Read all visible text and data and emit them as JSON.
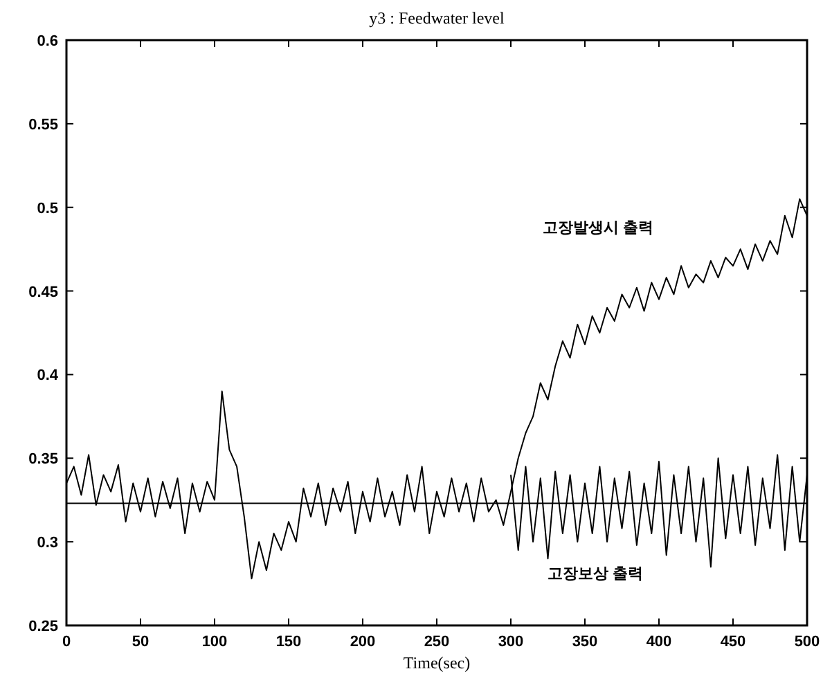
{
  "chart_data": {
    "type": "line",
    "title": "y3 : Feedwater level",
    "xlabel": "Time(sec)",
    "xlim": [
      0,
      500
    ],
    "xticks": [
      0,
      50,
      100,
      150,
      200,
      250,
      300,
      350,
      400,
      450,
      500
    ],
    "ylim": [
      0.25,
      0.6
    ],
    "yticks": [
      0.25,
      0.3,
      0.35,
      0.4,
      0.45,
      0.5,
      0.55,
      0.6
    ],
    "grid": false,
    "line_style": "solid",
    "series": [
      {
        "color": "#000000",
        "x": [
          0,
          5,
          10,
          15,
          20,
          25,
          30,
          35,
          40,
          45,
          50,
          55,
          60,
          65,
          70,
          75,
          80,
          85,
          90,
          95,
          100,
          105,
          110,
          115,
          120,
          125,
          130,
          135,
          140,
          145,
          150,
          155,
          160,
          165,
          170,
          175,
          180,
          185,
          190,
          195,
          200,
          205,
          210,
          215,
          220,
          225,
          230,
          235,
          240,
          245,
          250,
          255,
          260,
          265,
          270,
          275,
          280,
          285,
          290,
          295,
          300,
          305,
          310,
          315,
          320,
          325,
          330,
          335,
          340,
          345,
          350,
          355,
          360,
          365,
          370,
          375,
          380,
          385,
          390,
          395,
          400,
          405,
          410,
          415,
          420,
          425,
          430,
          435,
          440,
          445,
          450,
          455,
          460,
          465,
          470,
          475,
          480,
          485,
          490,
          495,
          500
        ],
        "values": [
          0.335,
          0.345,
          0.328,
          0.352,
          0.322,
          0.34,
          0.33,
          0.346,
          0.312,
          0.335,
          0.318,
          0.338,
          0.315,
          0.336,
          0.32,
          0.338,
          0.305,
          0.335,
          0.318,
          0.336,
          0.325,
          0.39,
          0.355,
          0.345,
          0.315,
          0.278,
          0.3,
          0.283,
          0.305,
          0.295,
          0.312,
          0.3,
          0.332,
          0.315,
          0.335,
          0.31,
          0.332,
          0.318,
          0.336,
          0.305,
          0.33,
          0.312,
          0.338,
          0.315,
          0.33,
          0.31,
          0.34,
          0.318,
          0.345,
          0.305,
          0.33,
          0.315,
          0.338,
          0.318,
          0.335,
          0.312,
          0.338,
          0.318,
          0.325,
          0.31,
          0.33,
          0.35,
          0.365,
          0.375,
          0.395,
          0.385,
          0.405,
          0.42,
          0.41,
          0.43,
          0.418,
          0.435,
          0.425,
          0.44,
          0.432,
          0.448,
          0.44,
          0.452,
          0.438,
          0.455,
          0.445,
          0.458,
          0.448,
          0.465,
          0.452,
          0.46,
          0.455,
          0.468,
          0.458,
          0.47,
          0.465,
          0.475,
          0.463,
          0.478,
          0.468,
          0.48,
          0.472,
          0.495,
          0.482,
          0.505,
          0.495
        ]
      },
      {
        "color": "#000000",
        "x": [
          300,
          305,
          310,
          315,
          320,
          325,
          330,
          335,
          340,
          345,
          350,
          355,
          360,
          365,
          370,
          375,
          380,
          385,
          390,
          395,
          400,
          405,
          410,
          415,
          420,
          425,
          430,
          435,
          440,
          445,
          450,
          455,
          460,
          465,
          470,
          475,
          480,
          485,
          490,
          495,
          500
        ],
        "values": [
          0.34,
          0.295,
          0.345,
          0.3,
          0.338,
          0.29,
          0.342,
          0.305,
          0.34,
          0.3,
          0.335,
          0.305,
          0.345,
          0.3,
          0.338,
          0.308,
          0.342,
          0.298,
          0.335,
          0.305,
          0.348,
          0.292,
          0.34,
          0.305,
          0.345,
          0.3,
          0.338,
          0.285,
          0.35,
          0.302,
          0.34,
          0.305,
          0.345,
          0.298,
          0.338,
          0.308,
          0.352,
          0.295,
          0.345,
          0.3,
          0.34
        ]
      }
    ],
    "ref_lines": [
      {
        "axis": "y",
        "value": 0.323,
        "color": "#000000"
      }
    ],
    "annotations": [
      "고장발생시 출력",
      "고장보상 출력"
    ]
  }
}
